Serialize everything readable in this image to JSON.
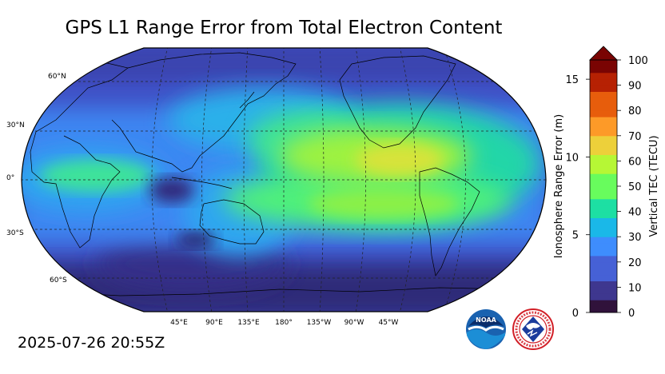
{
  "title": "GPS L1 Range Error from Total Electron Content",
  "timestamp": "2025-07-26 20:55Z",
  "map": {
    "latitude_labels": [
      "60°N",
      "30°N",
      "0°",
      "30°S",
      "60°S"
    ],
    "longitude_labels": [
      "45°E",
      "90°E",
      "135°E",
      "180°",
      "135°W",
      "90°W",
      "45°W"
    ]
  },
  "colorbar": {
    "right_axis_label": "Vertical TEC (TECU)",
    "left_axis_label": "Ionosphere Range Error (m)",
    "right_ticks": [
      "0",
      "10",
      "20",
      "30",
      "40",
      "50",
      "60",
      "70",
      "80",
      "90",
      "100"
    ],
    "left_ticks": [
      "0",
      "5",
      "10",
      "15"
    ],
    "colors": [
      "#30123b",
      "#3e378f",
      "#4661d6",
      "#3e8dfd",
      "#1ab8e8",
      "#1ddfa3",
      "#68fc5d",
      "#b6f735",
      "#edd03a",
      "#fd9a28",
      "#e75d0c",
      "#b62103",
      "#7a0403"
    ],
    "extend_color": "#7a0403"
  },
  "logos": {
    "noaa_text": "NOAA",
    "nws_text": "NATIONAL WEATHER SERVICE"
  },
  "colors": {
    "background_low": "#3f48b8",
    "equatorial_high": "#d7e33a"
  }
}
